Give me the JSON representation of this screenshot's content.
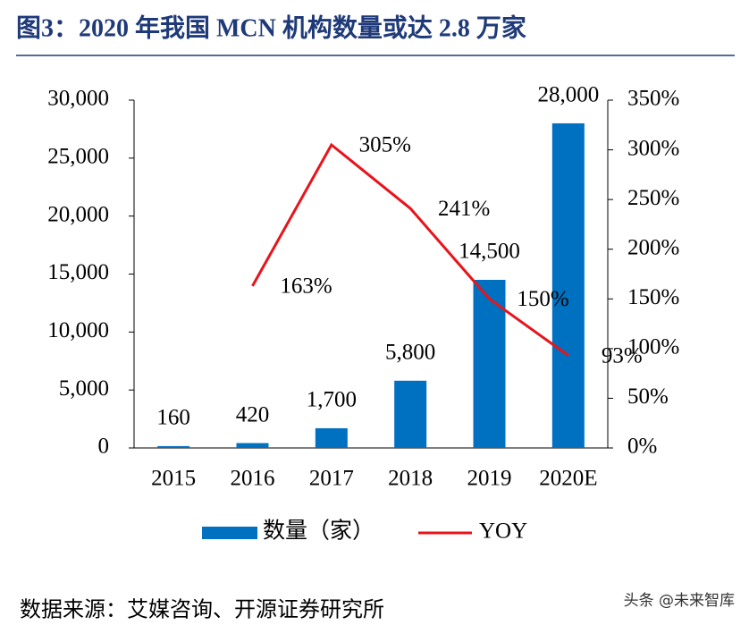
{
  "chart_data": {
    "type": "bar-line",
    "title": "图3：2020 年我国 MCN 机构数量或达 2.8 万家",
    "categories": [
      "2015",
      "2016",
      "2017",
      "2018",
      "2019",
      "2020E"
    ],
    "series": [
      {
        "name": "数量（家）",
        "color": "#0070c0",
        "values": [
          160,
          420,
          1700,
          5800,
          14500,
          28000
        ],
        "value_labels": [
          "160",
          "420",
          "1,700",
          "5,800",
          "14,500",
          "28,000"
        ]
      },
      {
        "name": "YOY",
        "color": "#e8141b",
        "axis": "y2",
        "values": [
          null,
          163,
          305,
          241,
          150,
          93
        ],
        "value_labels": [
          null,
          "163%",
          "305%",
          "241%",
          "150%",
          "93%"
        ]
      }
    ],
    "ylim": [
      0,
      30000
    ],
    "yticks": [
      0,
      {
        "value": 5000,
        "label": "5,000"
      },
      {
        "value": 10000,
        "label": "10,000"
      },
      {
        "value": 15000,
        "label": "15,000"
      },
      {
        "value": 20000,
        "label": "20,000"
      },
      {
        "value": 25000,
        "label": "25,000"
      },
      {
        "value": 30000,
        "label": "30,000"
      }
    ],
    "y2lim": [
      0,
      350
    ],
    "y2ticks": [
      {
        "value": 0,
        "label": "0%"
      },
      {
        "value": 50,
        "label": "50%"
      },
      {
        "value": 100,
        "label": "100%"
      },
      {
        "value": 150,
        "label": "150%"
      },
      {
        "value": 200,
        "label": "200%"
      },
      {
        "value": 250,
        "label": "250%"
      },
      {
        "value": 300,
        "label": "300%"
      },
      {
        "value": 350,
        "label": "350%"
      }
    ],
    "source": "数据来源：艾媒咨询、开源证券研究所",
    "watermark": "头条 @未来智库"
  }
}
